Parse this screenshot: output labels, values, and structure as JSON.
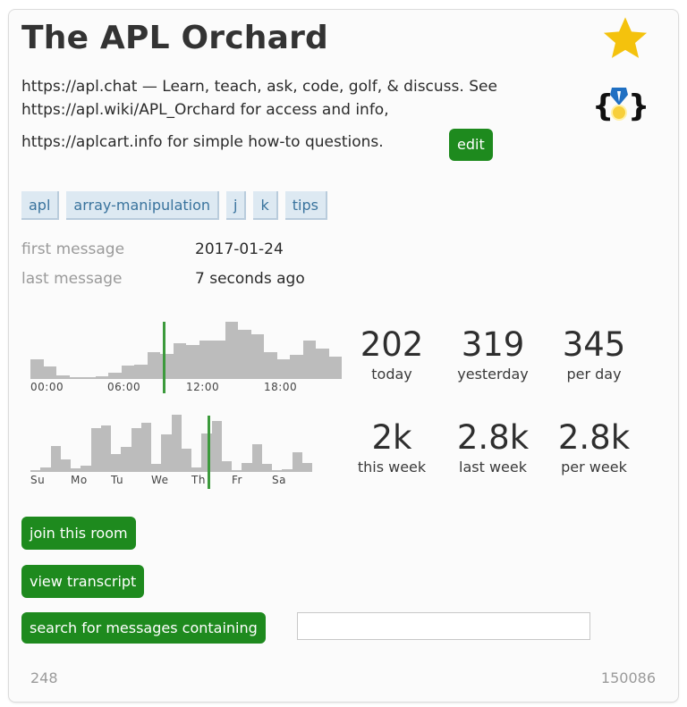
{
  "room": {
    "title": "The APL Orchard",
    "description_line1": "https://apl.chat — Learn, teach, ask, code, golf, & discuss. See",
    "description_line2": "https://apl.wiki/APL_Orchard for access and info,",
    "description_line3": "https://aplcart.info for simple how-to questions.",
    "edit_label": "edit",
    "star_icon": "star-icon",
    "badge_icon": "code-medal-icon",
    "tags": [
      "apl",
      "array-manipulation",
      "j",
      "k",
      "tips"
    ],
    "first_message_label": "first message",
    "first_message_value": "2017-01-24",
    "last_message_label": "last message",
    "last_message_value": "7 seconds ago"
  },
  "stats": {
    "today": {
      "value": "202",
      "label": "today"
    },
    "yesterday": {
      "value": "319",
      "label": "yesterday"
    },
    "per_day": {
      "value": "345",
      "label": "per day"
    },
    "this_week": {
      "value": "2k",
      "label": "this week"
    },
    "last_week": {
      "value": "2.8k",
      "label": "last week"
    },
    "per_week": {
      "value": "2.8k",
      "label": "per week"
    }
  },
  "chart_data": [
    {
      "type": "bar",
      "title": "messages by hour",
      "categories": [
        "00",
        "01",
        "02",
        "03",
        "04",
        "05",
        "06",
        "07",
        "08",
        "09",
        "10",
        "11",
        "12",
        "13",
        "14",
        "15",
        "16",
        "17",
        "18",
        "19",
        "20",
        "21",
        "22",
        "23"
      ],
      "tick_labels": [
        "00:00",
        "06:00",
        "12:00",
        "18:00"
      ],
      "values": [
        22,
        14,
        4,
        1,
        1,
        3,
        7,
        15,
        16,
        30,
        28,
        40,
        38,
        43,
        43,
        64,
        55,
        50,
        30,
        22,
        27,
        43,
        34,
        25
      ],
      "current_marker": "09:10",
      "grid": false
    },
    {
      "type": "bar",
      "title": "messages by day of week",
      "categories": [
        "Su",
        "Su",
        "Su",
        "Su",
        "Mo",
        "Mo",
        "Mo",
        "Mo",
        "Tu",
        "Tu",
        "Tu",
        "Tu",
        "We",
        "We",
        "We",
        "We",
        "Th",
        "Th",
        "Th",
        "Th",
        "Fr",
        "Fr",
        "Fr",
        "Fr",
        "Sa",
        "Sa",
        "Sa",
        "Sa"
      ],
      "tick_labels": [
        "Su",
        "Mo",
        "Tu",
        "We",
        "Th",
        "Fr",
        "Sa"
      ],
      "values": [
        2,
        5,
        28,
        14,
        4,
        7,
        47,
        50,
        19,
        27,
        47,
        53,
        9,
        41,
        62,
        25,
        5,
        42,
        55,
        12,
        2,
        10,
        30,
        9,
        1,
        3,
        21,
        10
      ],
      "current_marker": "Th",
      "grid": false
    }
  ],
  "actions": {
    "join_label": "join this room",
    "transcript_label": "view transcript",
    "search_label": "search for messages containing",
    "search_value": ""
  },
  "footer": {
    "left_number": "248",
    "right_number": "150086"
  },
  "colors": {
    "accent_green": "#1e8a1e",
    "tag_bg": "#dde9f2",
    "tag_text": "#39739d",
    "bar": "#bcbcbc",
    "now_marker": "#3c9a3c",
    "star": "#f4c20d"
  }
}
